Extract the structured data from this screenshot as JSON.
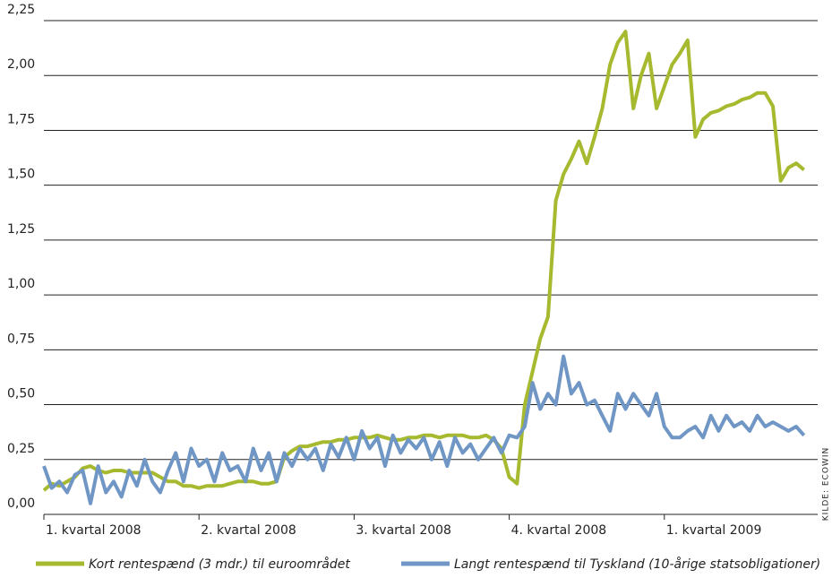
{
  "chart_data": {
    "type": "line",
    "source": "KILDE: ECOWIN",
    "categories": [
      "1. kvartal 2008",
      null,
      null,
      null,
      null,
      null,
      null,
      null,
      null,
      null,
      null,
      null,
      null,
      null,
      null,
      null,
      null,
      null,
      null,
      null,
      "2. kvartal 2008",
      null,
      null,
      null,
      null,
      null,
      null,
      null,
      null,
      null,
      null,
      null,
      null,
      null,
      null,
      null,
      null,
      null,
      null,
      null,
      "3. kvartal 2008",
      null,
      null,
      null,
      null,
      null,
      null,
      null,
      null,
      null,
      null,
      null,
      null,
      null,
      null,
      null,
      null,
      null,
      null,
      null,
      "4. kvartal 2008",
      null,
      null,
      null,
      null,
      null,
      null,
      null,
      null,
      null,
      null,
      null,
      null,
      null,
      null,
      null,
      null,
      null,
      null,
      null,
      "1. kvartal 2009",
      null,
      null,
      null,
      null,
      null,
      null,
      null,
      null,
      null,
      null,
      null,
      null,
      null,
      null,
      null,
      null,
      null,
      null
    ],
    "series": [
      {
        "name": "Kort rentespænd (3 mdr.) til euroområdet",
        "color": "#a6b92f",
        "values": [
          0.11,
          0.14,
          0.13,
          0.15,
          0.17,
          0.21,
          0.22,
          0.2,
          0.19,
          0.2,
          0.2,
          0.19,
          0.19,
          0.19,
          0.19,
          0.17,
          0.15,
          0.15,
          0.13,
          0.13,
          0.12,
          0.13,
          0.13,
          0.13,
          0.14,
          0.15,
          0.15,
          0.15,
          0.14,
          0.14,
          0.15,
          0.26,
          0.29,
          0.31,
          0.31,
          0.32,
          0.33,
          0.33,
          0.34,
          0.34,
          0.35,
          0.35,
          0.35,
          0.36,
          0.35,
          0.34,
          0.34,
          0.35,
          0.35,
          0.36,
          0.36,
          0.35,
          0.36,
          0.36,
          0.36,
          0.35,
          0.35,
          0.36,
          0.34,
          0.3,
          0.17,
          0.14,
          0.5,
          0.65,
          0.8,
          0.9,
          1.43,
          1.55,
          1.62,
          1.7,
          1.6,
          1.72,
          1.85,
          2.05,
          2.15,
          2.2,
          1.85,
          2.0,
          2.1,
          1.85,
          1.95,
          2.05,
          2.1,
          2.16,
          1.72,
          1.8,
          1.83,
          1.84,
          1.86,
          1.87,
          1.89,
          1.9,
          1.92,
          1.92,
          1.86,
          1.52,
          1.58,
          1.6,
          1.57
        ]
      },
      {
        "name": "Langt rentespænd til Tyskland (10-årige statsobligationer)",
        "color": "#6f96c4",
        "values": [
          0.22,
          0.12,
          0.15,
          0.1,
          0.18,
          0.2,
          0.05,
          0.22,
          0.1,
          0.15,
          0.08,
          0.2,
          0.13,
          0.25,
          0.15,
          0.1,
          0.2,
          0.28,
          0.15,
          0.3,
          0.22,
          0.25,
          0.15,
          0.28,
          0.2,
          0.22,
          0.15,
          0.3,
          0.2,
          0.28,
          0.15,
          0.28,
          0.22,
          0.3,
          0.25,
          0.3,
          0.2,
          0.32,
          0.26,
          0.35,
          0.25,
          0.38,
          0.3,
          0.35,
          0.22,
          0.36,
          0.28,
          0.34,
          0.3,
          0.35,
          0.25,
          0.33,
          0.22,
          0.35,
          0.28,
          0.32,
          0.25,
          0.3,
          0.35,
          0.28,
          0.36,
          0.35,
          0.4,
          0.6,
          0.48,
          0.55,
          0.5,
          0.72,
          0.55,
          0.6,
          0.5,
          0.52,
          0.45,
          0.38,
          0.55,
          0.48,
          0.55,
          0.5,
          0.45,
          0.55,
          0.4,
          0.35,
          0.35,
          0.38,
          0.4,
          0.35,
          0.45,
          0.38,
          0.45,
          0.4,
          0.42,
          0.38,
          0.45,
          0.4,
          0.42,
          0.4,
          0.38,
          0.4,
          0.36
        ]
      }
    ],
    "ylim": [
      0,
      2.25
    ],
    "yticks": [
      {
        "value": 0,
        "label": "0,00"
      },
      {
        "value": 0.25,
        "label": "0,25"
      },
      {
        "value": 0.5,
        "label": "0,50"
      },
      {
        "value": 0.75,
        "label": "0,75"
      },
      {
        "value": 1,
        "label": "1,00"
      },
      {
        "value": 1.25,
        "label": "1,25"
      },
      {
        "value": 1.5,
        "label": "1,50"
      },
      {
        "value": 1.75,
        "label": "1,75"
      },
      {
        "value": 2,
        "label": "2,00"
      },
      {
        "value": 2.25,
        "label": "2,25"
      }
    ],
    "grid": true,
    "legend": "bottom"
  }
}
